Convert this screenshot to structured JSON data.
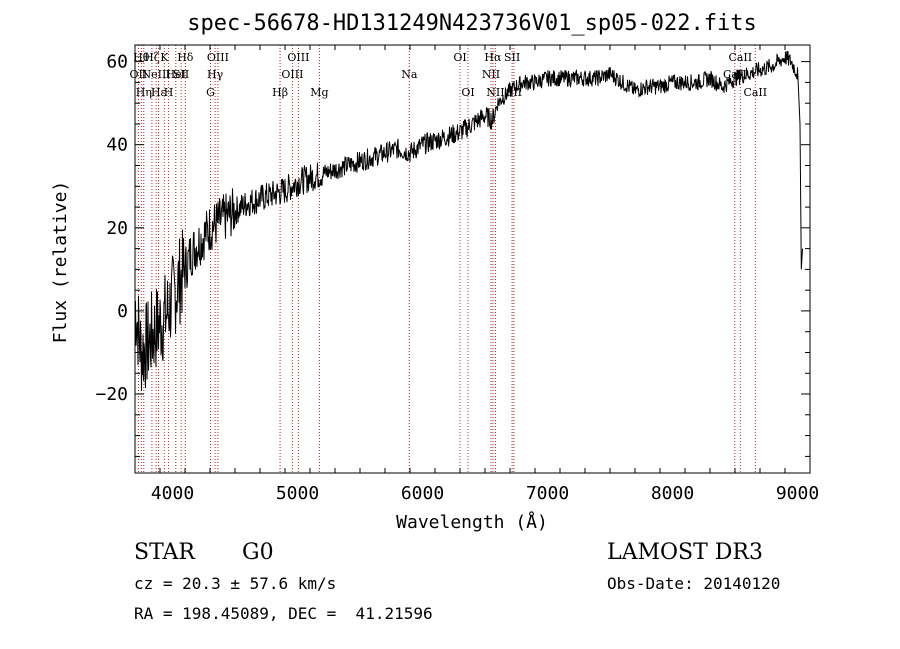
{
  "chart_data": {
    "type": "line",
    "title": "spec-56678-HD131249N423736V01_sp05-022.fits",
    "xlabel": "Wavelength (Å)",
    "ylabel": "Flux (relative)",
    "xlim": [
      3700,
      9100
    ],
    "ylim": [
      -39,
      64
    ],
    "xticks": [
      4000,
      5000,
      6000,
      7000,
      8000,
      9000
    ],
    "yticks": [
      -20,
      0,
      20,
      40,
      60
    ],
    "grid": false,
    "series": [
      {
        "name": "spectrum",
        "x": [
          3700,
          3750,
          3800,
          3850,
          3900,
          3950,
          4000,
          4050,
          4100,
          4150,
          4200,
          4250,
          4300,
          4350,
          4400,
          4450,
          4500,
          4600,
          4700,
          4800,
          4900,
          5000,
          5100,
          5200,
          5300,
          5400,
          5500,
          5600,
          5700,
          5800,
          5900,
          6000,
          6100,
          6200,
          6300,
          6400,
          6500,
          6560,
          6600,
          6700,
          6800,
          6900,
          7000,
          7100,
          7200,
          7300,
          7400,
          7500,
          7600,
          7700,
          7800,
          7900,
          8000,
          8100,
          8200,
          8300,
          8400,
          8500,
          8600,
          8700,
          8800,
          8900,
          8950,
          9000
        ],
        "y": [
          2,
          -10,
          -8,
          -5,
          -3,
          -1,
          3,
          7,
          10,
          14,
          16,
          18,
          20,
          21,
          22,
          23,
          24,
          26,
          27,
          28,
          29,
          31,
          32,
          33,
          34,
          35,
          36,
          37,
          38,
          39,
          38,
          40,
          41,
          42,
          43,
          45,
          47,
          46,
          50,
          53,
          55,
          55,
          56,
          56,
          56,
          56,
          56,
          57,
          55,
          53,
          54,
          54,
          55,
          55,
          55,
          56,
          54,
          56,
          57,
          58,
          59,
          61,
          60,
          57
        ]
      }
    ],
    "lines": [
      {
        "x": 3727,
        "label": "OII",
        "row": 1
      },
      {
        "x": 3750,
        "label": "Hθ",
        "row": 0
      },
      {
        "x": 3770,
        "label": "Hη",
        "row": 2
      },
      {
        "x": 3835,
        "label": "Hζ",
        "row": 0
      },
      {
        "x": 3869,
        "label": "NeIII",
        "row": 1
      },
      {
        "x": 3889,
        "label": "Hε",
        "row": 2
      },
      {
        "x": 3934,
        "label": "K",
        "row": 0
      },
      {
        "x": 3969,
        "label": "H",
        "row": 2
      },
      {
        "x": 4026,
        "label": "HeI",
        "row": 1
      },
      {
        "x": 4069,
        "label": "SII",
        "row": 1
      },
      {
        "x": 4102,
        "label": "Hδ",
        "row": 0
      },
      {
        "x": 4304,
        "label": "G",
        "row": 2
      },
      {
        "x": 4341,
        "label": "Hγ",
        "row": 1
      },
      {
        "x": 4363,
        "label": "OIII",
        "row": 0
      },
      {
        "x": 4861,
        "label": "Hβ",
        "row": 2
      },
      {
        "x": 4959,
        "label": "OIII",
        "row": 1
      },
      {
        "x": 5007,
        "label": "OIII",
        "row": 0
      },
      {
        "x": 5175,
        "label": "Mg",
        "row": 2
      },
      {
        "x": 5894,
        "label": "Na",
        "row": 1
      },
      {
        "x": 6300,
        "label": "OI",
        "row": 0
      },
      {
        "x": 6364,
        "label": "OI",
        "row": 2
      },
      {
        "x": 6548,
        "label": "NII",
        "row": 1
      },
      {
        "x": 6563,
        "label": "Hα",
        "row": 0
      },
      {
        "x": 6583,
        "label": "NII",
        "row": 2
      },
      {
        "x": 6717,
        "label": "SII",
        "row": 0
      },
      {
        "x": 6731,
        "label": "SII",
        "row": 2
      },
      {
        "x": 8498,
        "label": "CaII",
        "row": 1
      },
      {
        "x": 8542,
        "label": "CaII",
        "row": 0
      },
      {
        "x": 8662,
        "label": "CaII",
        "row": 2
      }
    ]
  },
  "info": {
    "object_type": "STAR",
    "subclass": "G0",
    "survey": "LAMOST DR3",
    "cz": "cz = 20.3 ± 57.6 km/s",
    "obs_date": "Obs-Date: 20140120",
    "radec": "RA = 198.45089, DEC =  41.21596"
  }
}
